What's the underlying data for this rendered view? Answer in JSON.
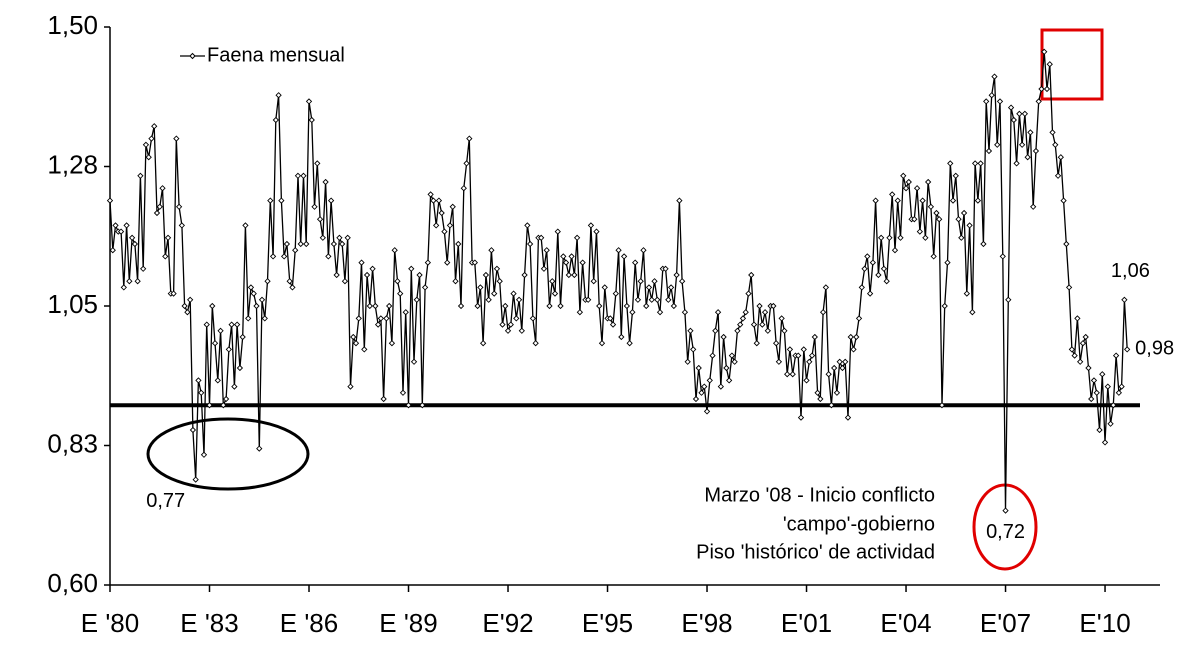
{
  "chart_data": {
    "type": "line",
    "categories": [
      "E '80",
      null,
      null,
      null,
      null,
      null,
      null,
      null,
      null,
      null,
      null,
      null,
      null,
      null,
      null,
      null,
      null,
      null,
      null,
      null,
      null,
      null,
      null,
      null,
      null,
      null,
      null,
      null,
      null,
      null,
      null,
      null,
      null,
      null,
      null,
      null,
      "E '83",
      null,
      null,
      null,
      null,
      null,
      null,
      null,
      null,
      null,
      null,
      null,
      null,
      null,
      null,
      null,
      null,
      null,
      null,
      null,
      null,
      null,
      null,
      null,
      null,
      null,
      null,
      null,
      null,
      null,
      null,
      null,
      null,
      null,
      null,
      null,
      "E '86",
      null,
      null,
      null,
      null,
      null,
      null,
      null,
      null,
      null,
      null,
      null,
      null,
      null,
      null,
      null,
      null,
      null,
      null,
      null,
      null,
      null,
      null,
      null,
      null,
      null,
      null,
      null,
      null,
      null,
      null,
      null,
      null,
      null,
      null,
      null,
      "E '89",
      null,
      null,
      null,
      null,
      null,
      null,
      null,
      null,
      null,
      null,
      null,
      null,
      null,
      null,
      null,
      null,
      null,
      null,
      null,
      null,
      null,
      null,
      null,
      null,
      null,
      null,
      null,
      null,
      null,
      null,
      null,
      null,
      null,
      null,
      null,
      "E'92",
      null,
      null,
      null,
      null,
      null,
      null,
      null,
      null,
      null,
      null,
      null,
      null,
      null,
      null,
      null,
      null,
      null,
      null,
      null,
      null,
      null,
      null,
      null,
      null,
      null,
      null,
      null,
      null,
      null,
      null,
      null,
      null,
      null,
      null,
      null,
      "E'95",
      null,
      null,
      null,
      null,
      null,
      null,
      null,
      null,
      null,
      null,
      null,
      null,
      null,
      null,
      null,
      null,
      null,
      null,
      null,
      null,
      null,
      null,
      null,
      null,
      null,
      null,
      null,
      null,
      null,
      null,
      null,
      null,
      null,
      null,
      null,
      "E'98",
      null,
      null,
      null,
      null,
      null,
      null,
      null,
      null,
      null,
      null,
      null,
      null,
      null,
      null,
      null,
      null,
      null,
      null,
      null,
      null,
      null,
      null,
      null,
      null,
      null,
      null,
      null,
      null,
      null,
      null,
      null,
      null,
      null,
      null,
      null,
      "E'01",
      null,
      null,
      null,
      null,
      null,
      null,
      null,
      null,
      null,
      null,
      null,
      null,
      null,
      null,
      null,
      null,
      null,
      null,
      null,
      null,
      null,
      null,
      null,
      null,
      null,
      null,
      null,
      null,
      null,
      null,
      null,
      null,
      null,
      null,
      null,
      "E'04",
      null,
      null,
      null,
      null,
      null,
      null,
      null,
      null,
      null,
      null,
      null,
      null,
      null,
      null,
      null,
      null,
      null,
      null,
      null,
      null,
      null,
      null,
      null,
      null,
      null,
      null,
      null,
      null,
      null,
      null,
      null,
      null,
      null,
      null,
      null,
      "E'07",
      null,
      null,
      null,
      null,
      null,
      null,
      null,
      null,
      null,
      null,
      null,
      null,
      null,
      null,
      null,
      null,
      null,
      null,
      null,
      null,
      null,
      null,
      null,
      null,
      null,
      null,
      null,
      null,
      null,
      null,
      null,
      null,
      null,
      null,
      null,
      "E'10",
      null,
      null,
      null,
      null,
      null,
      null,
      null,
      null
    ],
    "series": [
      {
        "name": "Faena mensual",
        "color": "#000000",
        "values": [
          1.22,
          1.14,
          1.18,
          1.17,
          1.17,
          1.08,
          1.18,
          1.09,
          1.16,
          1.15,
          1.09,
          1.26,
          1.11,
          1.31,
          1.29,
          1.32,
          1.34,
          1.2,
          1.21,
          1.24,
          1.13,
          1.16,
          1.07,
          1.07,
          1.32,
          1.21,
          1.18,
          1.05,
          1.04,
          1.06,
          0.85,
          0.77,
          0.93,
          0.91,
          0.81,
          1.02,
          0.89,
          1.05,
          0.99,
          0.93,
          1.01,
          0.89,
          0.9,
          0.98,
          1.02,
          0.92,
          1.02,
          0.95,
          1.0,
          1.18,
          1.03,
          1.08,
          1.07,
          1.05,
          0.82,
          1.06,
          1.03,
          1.09,
          1.22,
          1.13,
          1.35,
          1.39,
          1.22,
          1.13,
          1.15,
          1.09,
          1.08,
          1.14,
          1.26,
          1.15,
          1.26,
          1.15,
          1.38,
          1.35,
          1.21,
          1.28,
          1.19,
          1.16,
          1.25,
          1.13,
          1.22,
          1.15,
          1.1,
          1.16,
          1.15,
          1.09,
          1.16,
          0.92,
          1.0,
          0.99,
          1.03,
          1.12,
          0.98,
          1.1,
          1.05,
          1.11,
          1.05,
          1.02,
          1.03,
          0.9,
          1.03,
          1.05,
          0.99,
          1.14,
          1.09,
          1.07,
          0.91,
          1.04,
          0.89,
          1.11,
          0.96,
          1.06,
          1.1,
          0.89,
          1.08,
          1.12,
          1.23,
          1.22,
          1.18,
          1.22,
          1.2,
          1.17,
          1.12,
          1.18,
          1.21,
          1.09,
          1.15,
          1.05,
          1.24,
          1.28,
          1.32,
          1.12,
          1.12,
          1.05,
          1.08,
          0.99,
          1.1,
          1.06,
          1.14,
          1.07,
          1.11,
          1.09,
          1.02,
          1.05,
          1.01,
          1.02,
          1.07,
          1.03,
          1.06,
          1.01,
          1.1,
          1.18,
          1.15,
          1.03,
          0.99,
          1.16,
          1.16,
          1.11,
          1.14,
          1.05,
          1.09,
          1.07,
          1.17,
          1.05,
          1.13,
          1.12,
          1.1,
          1.13,
          1.1,
          1.16,
          1.04,
          1.12,
          1.06,
          1.06,
          1.18,
          1.09,
          1.17,
          1.05,
          0.99,
          1.08,
          1.03,
          1.03,
          1.02,
          1.07,
          1.14,
          1.0,
          1.13,
          1.05,
          0.99,
          1.04,
          1.12,
          1.06,
          1.09,
          1.14,
          1.05,
          1.08,
          1.06,
          1.09,
          1.06,
          1.04,
          1.11,
          1.11,
          1.06,
          1.08,
          1.05,
          1.1,
          1.22,
          1.09,
          1.04,
          0.96,
          1.01,
          0.98,
          0.9,
          0.95,
          0.91,
          0.92,
          0.88,
          0.93,
          0.97,
          1.01,
          1.04,
          0.92,
          1.0,
          0.95,
          0.93,
          0.97,
          0.96,
          1.01,
          1.02,
          1.03,
          1.04,
          1.07,
          1.1,
          1.02,
          0.99,
          1.05,
          1.02,
          1.04,
          1.01,
          1.05,
          1.05,
          0.99,
          0.96,
          1.03,
          1.01,
          0.94,
          0.98,
          0.94,
          0.97,
          0.97,
          0.87,
          0.98,
          0.93,
          0.96,
          0.97,
          1.0,
          0.91,
          0.9,
          1.04,
          1.08,
          0.94,
          0.89,
          0.95,
          0.91,
          0.96,
          0.95,
          0.96,
          0.87,
          1.0,
          0.98,
          1.0,
          1.03,
          1.08,
          1.11,
          1.13,
          1.07,
          1.12,
          1.22,
          1.1,
          1.16,
          1.11,
          1.09,
          1.16,
          1.23,
          1.14,
          1.22,
          1.16,
          1.26,
          1.24,
          1.25,
          1.19,
          1.19,
          1.24,
          1.17,
          1.22,
          1.16,
          1.25,
          1.21,
          1.13,
          1.2,
          1.19,
          0.89,
          1.05,
          1.12,
          1.28,
          1.22,
          1.26,
          1.19,
          1.16,
          1.2,
          1.07,
          1.18,
          1.04,
          1.28,
          1.22,
          1.28,
          1.15,
          1.38,
          1.3,
          1.39,
          1.42,
          1.31,
          1.38,
          1.13,
          0.72,
          1.06,
          1.37,
          1.35,
          1.28,
          1.36,
          1.31,
          1.36,
          1.29,
          1.33,
          1.21,
          1.3,
          1.38,
          1.4,
          1.46,
          1.4,
          1.44,
          1.33,
          1.31,
          1.26,
          1.29,
          1.22,
          1.15,
          1.08,
          0.98,
          0.97,
          1.03,
          0.96,
          0.99,
          1.0,
          0.95,
          0.9,
          0.93,
          0.91,
          0.85,
          0.94,
          0.83,
          0.92,
          0.86,
          0.89,
          0.97,
          0.91,
          0.92,
          1.06,
          0.98
        ],
        "value_labels": {
          "31": "0,77",
          "324": "0,72",
          "367": "1,06",
          "368": "0,98"
        }
      }
    ],
    "ylim": [
      0.6,
      1.5
    ],
    "yticks": [
      {
        "value": 0.6,
        "label": "0,60"
      },
      {
        "value": 0.825,
        "label": "0,83"
      },
      {
        "value": 1.05,
        "label": "1,05"
      },
      {
        "value": 1.275,
        "label": "1,28"
      },
      {
        "value": 1.5,
        "label": "1,50"
      }
    ],
    "floor_line": 0.89,
    "annotation": [
      "Marzo '08 - Inicio conflicto",
      "'campo'-gobierno",
      "Piso 'histórico' de actividad"
    ],
    "legend": "top-left"
  }
}
